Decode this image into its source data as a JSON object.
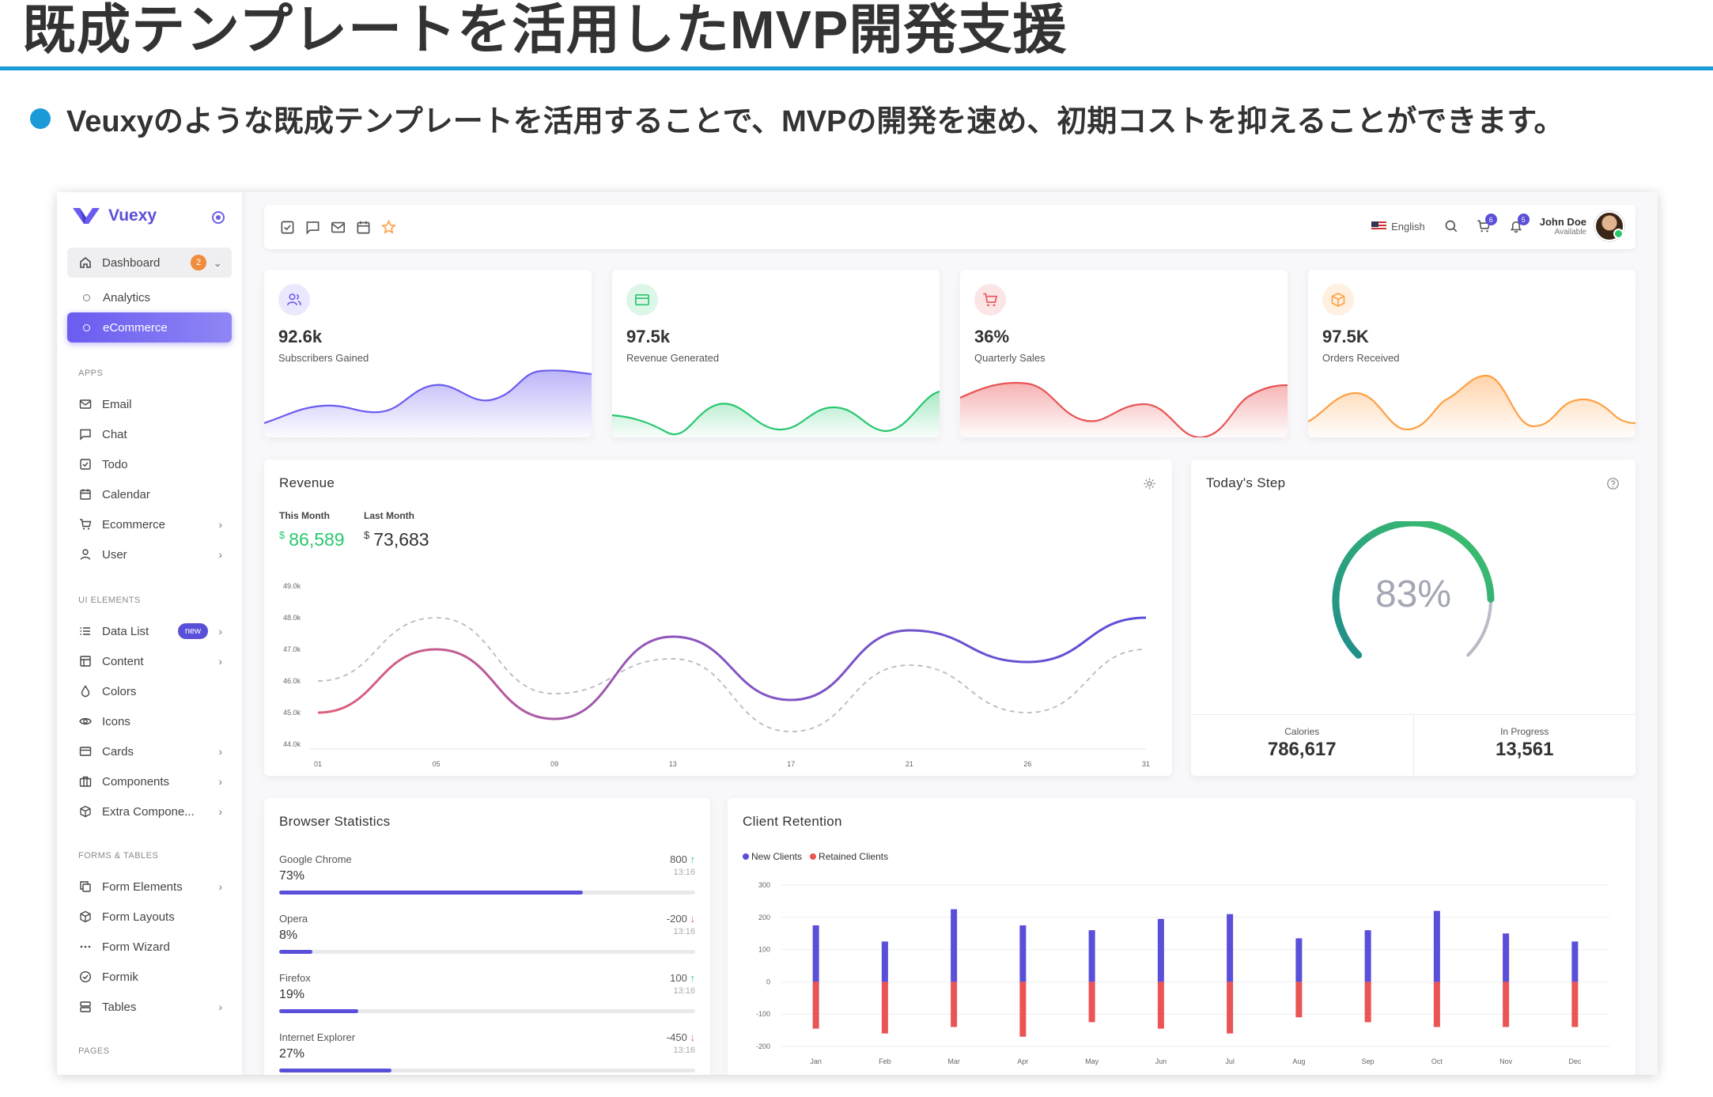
{
  "slide": {
    "title": "既成テンプレートを活用したMVP開発支援",
    "bullet": "Veuxyのような既成テンプレートを活用することで、MVPの開発を速め、初期コストを抑えることができます。"
  },
  "sidebar": {
    "brand": "Vuexy",
    "dashboard": {
      "label": "Dashboard",
      "badge": "2"
    },
    "dashboard_children": [
      "Analytics",
      "eCommerce"
    ],
    "sections": {
      "apps": "APPS",
      "ui": "UI ELEMENTS",
      "forms": "FORMS & TABLES",
      "pages": "PAGES"
    },
    "apps": [
      "Email",
      "Chat",
      "Todo",
      "Calendar",
      "Ecommerce",
      "User"
    ],
    "ui": [
      "Data List",
      "Content",
      "Colors",
      "Icons",
      "Cards",
      "Components",
      "Extra Compone..."
    ],
    "ui_new_badge": "new",
    "forms": [
      "Form Elements",
      "Form Layouts",
      "Form Wizard",
      "Formik",
      "Tables"
    ]
  },
  "topbar": {
    "language": "English",
    "cart_badge": "6",
    "bell_badge": "5",
    "user_name": "John Doe",
    "user_status": "Available"
  },
  "stats": [
    {
      "value": "92.6k",
      "label": "Subscribers Gained",
      "color": "#6a5cf0",
      "icon": "users-icon"
    },
    {
      "value": "97.5k",
      "label": "Revenue Generated",
      "color": "#28c76f",
      "icon": "credit-card-icon"
    },
    {
      "value": "36%",
      "label": "Quarterly Sales",
      "color": "#ea5455",
      "icon": "cart-icon"
    },
    {
      "value": "97.5K",
      "label": "Orders Received",
      "color": "#ff9f43",
      "icon": "package-icon"
    }
  ],
  "revenue": {
    "title": "Revenue",
    "this_month_label": "This Month",
    "last_month_label": "Last Month",
    "currency": "$",
    "this_month": "86,589",
    "last_month": "73,683"
  },
  "today_step": {
    "title": "Today's Step",
    "percent": "83%",
    "progress": 0.83,
    "calories_label": "Calories",
    "calories": "786,617",
    "progress_label": "In Progress",
    "progress_value": "13,561"
  },
  "browsers": {
    "title": "Browser Statistics",
    "rows": [
      {
        "name": "Google Chrome",
        "pct": "73%",
        "fill": 0.73,
        "value": "800",
        "dir": "up",
        "time": "13:16"
      },
      {
        "name": "Opera",
        "pct": "8%",
        "fill": 0.08,
        "value": "-200",
        "dir": "down",
        "time": "13:16"
      },
      {
        "name": "Firefox",
        "pct": "19%",
        "fill": 0.19,
        "value": "100",
        "dir": "up",
        "time": "13:16"
      },
      {
        "name": "Internet Explorer",
        "pct": "27%",
        "fill": 0.27,
        "value": "-450",
        "dir": "down",
        "time": "13:16"
      }
    ]
  },
  "retention": {
    "title": "Client Retention",
    "legend_new": "New Clients",
    "legend_retained": "Retained Clients"
  },
  "chart_data": [
    {
      "type": "line",
      "x": [
        "01",
        "05",
        "09",
        "13",
        "17",
        "21",
        "26",
        "31"
      ],
      "y_ticks": [
        "44.0k",
        "45.0k",
        "46.0k",
        "47.0k",
        "48.0k",
        "49.0k"
      ],
      "ylim": [
        44000,
        49000
      ],
      "series": [
        {
          "values": [
            45000,
            47000,
            44800,
            47400,
            45400,
            47600,
            46600,
            48000
          ],
          "color": "#6a5cf0"
        },
        {
          "values": [
            46000,
            48000,
            45600,
            46700,
            44400,
            46500,
            45000,
            47000
          ],
          "color": "#b9b9c3",
          "dashed": true
        }
      ]
    },
    {
      "type": "bar",
      "categories": [
        "Jan",
        "Feb",
        "Mar",
        "Apr",
        "May",
        "Jun",
        "Jul",
        "Aug",
        "Sep",
        "Oct",
        "Nov",
        "Dec"
      ],
      "y_ticks": [
        "300",
        "200",
        "100",
        "0",
        "-100",
        "-200"
      ],
      "ylim": [
        -200,
        300
      ],
      "series": [
        {
          "name": "New Clients",
          "color": "#5a4fd8",
          "values": [
            175,
            125,
            225,
            175,
            160,
            195,
            210,
            135,
            160,
            220,
            150,
            125
          ]
        },
        {
          "name": "Retained Clients",
          "color": "#ea5455",
          "values": [
            -145,
            -160,
            -140,
            -170,
            -125,
            -145,
            -160,
            -110,
            -125,
            -140,
            -140,
            -140
          ]
        }
      ]
    }
  ]
}
